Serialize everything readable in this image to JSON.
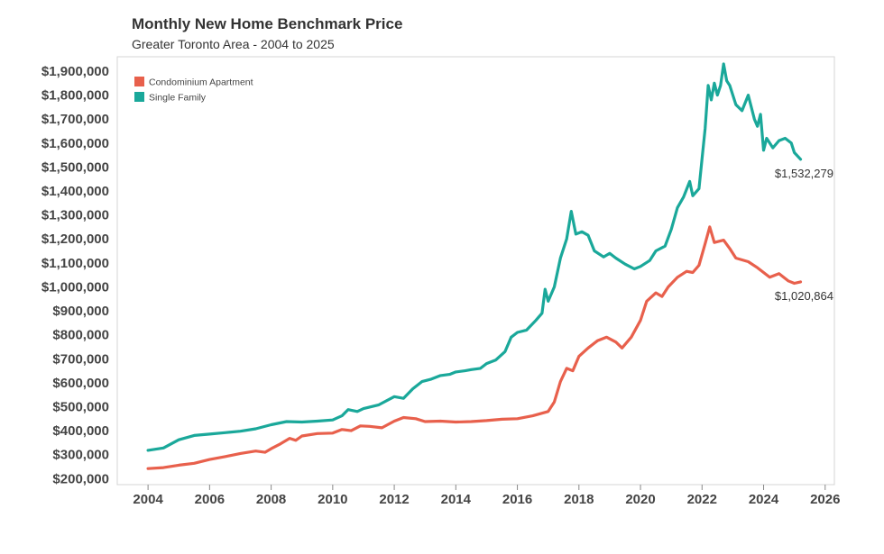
{
  "chart_data": {
    "type": "line",
    "title": "Monthly New Home Benchmark Price",
    "subtitle": "Greater Toronto Area - 2004 to 2025",
    "xlabel": "",
    "ylabel": "",
    "xlim": [
      2003.0,
      2026.3
    ],
    "ylim": [
      175000,
      1960000
    ],
    "x_ticks": [
      2004,
      2006,
      2008,
      2010,
      2012,
      2014,
      2016,
      2018,
      2020,
      2022,
      2024,
      2026
    ],
    "x_tick_labels": [
      "2004",
      "2006",
      "2008",
      "2010",
      "2012",
      "2014",
      "2016",
      "2018",
      "2020",
      "2022",
      "2024",
      "2026"
    ],
    "y_ticks": [
      200000,
      300000,
      400000,
      500000,
      600000,
      700000,
      800000,
      900000,
      1000000,
      1100000,
      1200000,
      1300000,
      1400000,
      1500000,
      1600000,
      1700000,
      1800000,
      1900000
    ],
    "y_tick_labels": [
      "$200,000",
      "$300,000",
      "$400,000",
      "$500,000",
      "$600,000",
      "$700,000",
      "$800,000",
      "$900,000",
      "$1,000,000",
      "$1,100,000",
      "$1,200,000",
      "$1,300,000",
      "$1,400,000",
      "$1,500,000",
      "$1,600,000",
      "$1,700,000",
      "$1,800,000",
      "$1,900,000"
    ],
    "grid": false,
    "legend_position": "top-left",
    "series": [
      {
        "name": "Condominium Apartment",
        "color": "#e8604c",
        "end_label": "$1,020,864",
        "points": [
          [
            2004.0,
            242000
          ],
          [
            2004.5,
            246000
          ],
          [
            2005.0,
            256000
          ],
          [
            2005.5,
            264000
          ],
          [
            2006.0,
            280000
          ],
          [
            2006.5,
            292000
          ],
          [
            2007.0,
            305000
          ],
          [
            2007.5,
            315000
          ],
          [
            2007.8,
            310000
          ],
          [
            2008.0,
            325000
          ],
          [
            2008.3,
            345000
          ],
          [
            2008.6,
            368000
          ],
          [
            2008.8,
            360000
          ],
          [
            2009.0,
            378000
          ],
          [
            2009.5,
            388000
          ],
          [
            2010.0,
            390000
          ],
          [
            2010.3,
            405000
          ],
          [
            2010.6,
            400000
          ],
          [
            2010.9,
            420000
          ],
          [
            2011.2,
            418000
          ],
          [
            2011.6,
            412000
          ],
          [
            2012.0,
            440000
          ],
          [
            2012.3,
            455000
          ],
          [
            2012.7,
            450000
          ],
          [
            2013.0,
            438000
          ],
          [
            2013.5,
            440000
          ],
          [
            2014.0,
            436000
          ],
          [
            2014.5,
            438000
          ],
          [
            2015.0,
            442000
          ],
          [
            2015.5,
            448000
          ],
          [
            2016.0,
            450000
          ],
          [
            2016.5,
            462000
          ],
          [
            2017.0,
            480000
          ],
          [
            2017.2,
            520000
          ],
          [
            2017.4,
            605000
          ],
          [
            2017.6,
            660000
          ],
          [
            2017.8,
            650000
          ],
          [
            2018.0,
            710000
          ],
          [
            2018.3,
            745000
          ],
          [
            2018.6,
            775000
          ],
          [
            2018.9,
            790000
          ],
          [
            2019.2,
            770000
          ],
          [
            2019.4,
            745000
          ],
          [
            2019.7,
            790000
          ],
          [
            2020.0,
            860000
          ],
          [
            2020.2,
            940000
          ],
          [
            2020.5,
            975000
          ],
          [
            2020.7,
            960000
          ],
          [
            2020.9,
            1000000
          ],
          [
            2021.2,
            1040000
          ],
          [
            2021.5,
            1065000
          ],
          [
            2021.7,
            1060000
          ],
          [
            2021.9,
            1090000
          ],
          [
            2022.1,
            1180000
          ],
          [
            2022.25,
            1250000
          ],
          [
            2022.4,
            1185000
          ],
          [
            2022.7,
            1195000
          ],
          [
            2022.9,
            1160000
          ],
          [
            2023.1,
            1120000
          ],
          [
            2023.5,
            1105000
          ],
          [
            2023.8,
            1080000
          ],
          [
            2024.0,
            1060000
          ],
          [
            2024.2,
            1040000
          ],
          [
            2024.5,
            1055000
          ],
          [
            2024.8,
            1025000
          ],
          [
            2025.0,
            1015000
          ],
          [
            2025.2,
            1020864
          ]
        ]
      },
      {
        "name": "Single Family",
        "color": "#1aa89a",
        "end_label": "$1,532,279",
        "points": [
          [
            2004.0,
            318000
          ],
          [
            2004.5,
            328000
          ],
          [
            2005.0,
            362000
          ],
          [
            2005.5,
            380000
          ],
          [
            2006.0,
            386000
          ],
          [
            2006.5,
            392000
          ],
          [
            2007.0,
            398000
          ],
          [
            2007.5,
            408000
          ],
          [
            2008.0,
            425000
          ],
          [
            2008.5,
            438000
          ],
          [
            2009.0,
            436000
          ],
          [
            2009.5,
            440000
          ],
          [
            2010.0,
            445000
          ],
          [
            2010.3,
            462000
          ],
          [
            2010.5,
            488000
          ],
          [
            2010.8,
            480000
          ],
          [
            2011.0,
            492000
          ],
          [
            2011.5,
            508000
          ],
          [
            2012.0,
            542000
          ],
          [
            2012.3,
            535000
          ],
          [
            2012.6,
            575000
          ],
          [
            2012.9,
            605000
          ],
          [
            2013.2,
            615000
          ],
          [
            2013.5,
            630000
          ],
          [
            2013.8,
            635000
          ],
          [
            2014.0,
            645000
          ],
          [
            2014.3,
            650000
          ],
          [
            2014.5,
            655000
          ],
          [
            2014.8,
            660000
          ],
          [
            2015.0,
            680000
          ],
          [
            2015.3,
            695000
          ],
          [
            2015.6,
            730000
          ],
          [
            2015.8,
            790000
          ],
          [
            2016.0,
            810000
          ],
          [
            2016.3,
            820000
          ],
          [
            2016.6,
            860000
          ],
          [
            2016.8,
            890000
          ],
          [
            2016.9,
            990000
          ],
          [
            2017.0,
            940000
          ],
          [
            2017.2,
            1000000
          ],
          [
            2017.4,
            1120000
          ],
          [
            2017.6,
            1200000
          ],
          [
            2017.75,
            1315000
          ],
          [
            2017.9,
            1220000
          ],
          [
            2018.1,
            1230000
          ],
          [
            2018.3,
            1215000
          ],
          [
            2018.5,
            1150000
          ],
          [
            2018.8,
            1125000
          ],
          [
            2019.0,
            1140000
          ],
          [
            2019.2,
            1120000
          ],
          [
            2019.5,
            1095000
          ],
          [
            2019.8,
            1075000
          ],
          [
            2020.0,
            1085000
          ],
          [
            2020.3,
            1110000
          ],
          [
            2020.5,
            1150000
          ],
          [
            2020.8,
            1170000
          ],
          [
            2021.0,
            1240000
          ],
          [
            2021.2,
            1330000
          ],
          [
            2021.4,
            1375000
          ],
          [
            2021.6,
            1440000
          ],
          [
            2021.7,
            1380000
          ],
          [
            2021.9,
            1410000
          ],
          [
            2022.0,
            1535000
          ],
          [
            2022.1,
            1660000
          ],
          [
            2022.2,
            1840000
          ],
          [
            2022.3,
            1780000
          ],
          [
            2022.4,
            1850000
          ],
          [
            2022.5,
            1800000
          ],
          [
            2022.6,
            1840000
          ],
          [
            2022.7,
            1930000
          ],
          [
            2022.8,
            1860000
          ],
          [
            2022.9,
            1840000
          ],
          [
            2023.1,
            1760000
          ],
          [
            2023.3,
            1735000
          ],
          [
            2023.5,
            1800000
          ],
          [
            2023.7,
            1700000
          ],
          [
            2023.8,
            1670000
          ],
          [
            2023.9,
            1720000
          ],
          [
            2024.0,
            1570000
          ],
          [
            2024.1,
            1620000
          ],
          [
            2024.3,
            1580000
          ],
          [
            2024.5,
            1610000
          ],
          [
            2024.7,
            1620000
          ],
          [
            2024.9,
            1600000
          ],
          [
            2025.0,
            1560000
          ],
          [
            2025.2,
            1532279
          ]
        ]
      }
    ]
  }
}
